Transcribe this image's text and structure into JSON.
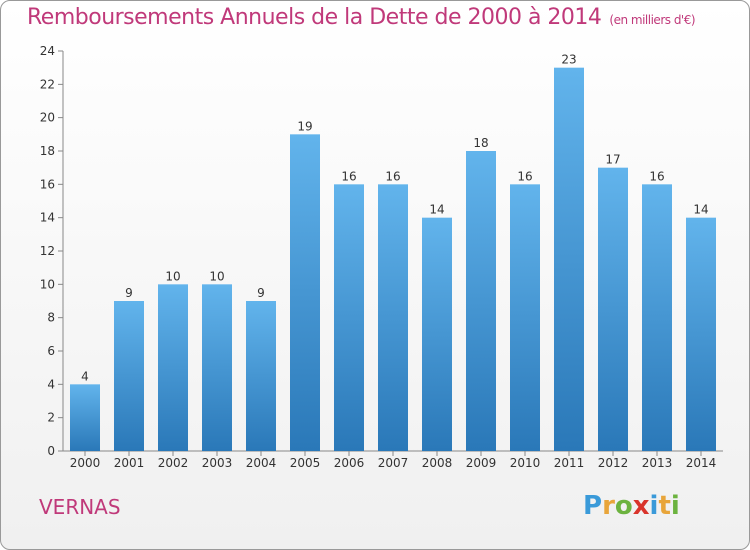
{
  "title": "Remboursements Annuels de la Dette de 2000 à 2014",
  "subtitle": "(en milliers d'€)",
  "commune": "VERNAS",
  "logo": {
    "letters": [
      "P",
      "r",
      "o",
      "x",
      "i",
      "t",
      "i"
    ],
    "colors": [
      "#3a9ad9",
      "#e8a53a",
      "#6cb33f",
      "#d9342b",
      "#3a9ad9",
      "#e8a53a",
      "#6cb33f"
    ]
  },
  "colors": {
    "bar_top": "#62b4ec",
    "bar_bottom": "#2a78b8",
    "title": "#c0397a"
  },
  "chart_data": {
    "type": "bar",
    "categories": [
      "2000",
      "2001",
      "2002",
      "2003",
      "2004",
      "2005",
      "2006",
      "2007",
      "2008",
      "2009",
      "2010",
      "2011",
      "2012",
      "2013",
      "2014"
    ],
    "values": [
      4,
      9,
      10,
      10,
      9,
      19,
      16,
      16,
      14,
      18,
      16,
      23,
      17,
      16,
      14
    ],
    "title": "Remboursements Annuels de la Dette de 2000 à 2014",
    "ylim": [
      0,
      24
    ],
    "yticks": [
      0,
      2,
      4,
      6,
      8,
      10,
      12,
      14,
      16,
      18,
      20,
      22,
      24
    ],
    "grid": false,
    "legend": "none"
  }
}
